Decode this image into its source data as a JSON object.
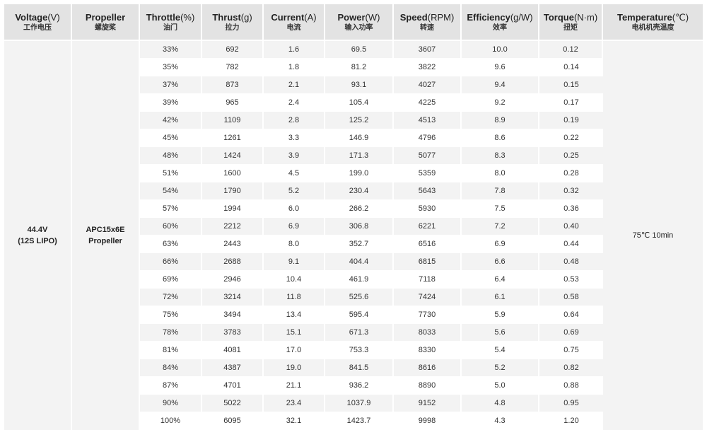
{
  "columns": [
    {
      "en": "Voltage",
      "unit": "(V)",
      "zh": "工作电压"
    },
    {
      "en": "Propeller",
      "unit": "",
      "zh": "螺旋桨"
    },
    {
      "en": "Throttle",
      "unit": "(%)",
      "zh": "油门"
    },
    {
      "en": "Thrust",
      "unit": "(g)",
      "zh": "拉力"
    },
    {
      "en": "Current",
      "unit": "(A)",
      "zh": "电流"
    },
    {
      "en": "Power",
      "unit": "(W)",
      "zh": "输入功率"
    },
    {
      "en": "Speed",
      "unit": "(RPM)",
      "zh": "转速"
    },
    {
      "en": "Efficiency",
      "unit": "(g/W)",
      "zh": "效率"
    },
    {
      "en": "Torque",
      "unit": "(N·m)",
      "zh": "扭矩"
    },
    {
      "en": "Temperature",
      "unit": "(℃)",
      "zh": "电机机壳温度"
    }
  ],
  "voltage": {
    "line1": "44.4V",
    "line2": "(12S LIPO)"
  },
  "propeller": {
    "line1": "APC15x6E",
    "line2": "Propeller"
  },
  "temperature": "75℃  10min",
  "rows": [
    [
      "33%",
      "692",
      "1.6",
      "69.5",
      "3607",
      "10.0",
      "0.12"
    ],
    [
      "35%",
      "782",
      "1.8",
      "81.2",
      "3822",
      "9.6",
      "0.14"
    ],
    [
      "37%",
      "873",
      "2.1",
      "93.1",
      "4027",
      "9.4",
      "0.15"
    ],
    [
      "39%",
      "965",
      "2.4",
      "105.4",
      "4225",
      "9.2",
      "0.17"
    ],
    [
      "42%",
      "1109",
      "2.8",
      "125.2",
      "4513",
      "8.9",
      "0.19"
    ],
    [
      "45%",
      "1261",
      "3.3",
      "146.9",
      "4796",
      "8.6",
      "0.22"
    ],
    [
      "48%",
      "1424",
      "3.9",
      "171.3",
      "5077",
      "8.3",
      "0.25"
    ],
    [
      "51%",
      "1600",
      "4.5",
      "199.0",
      "5359",
      "8.0",
      "0.28"
    ],
    [
      "54%",
      "1790",
      "5.2",
      "230.4",
      "5643",
      "7.8",
      "0.32"
    ],
    [
      "57%",
      "1994",
      "6.0",
      "266.2",
      "5930",
      "7.5",
      "0.36"
    ],
    [
      "60%",
      "2212",
      "6.9",
      "306.8",
      "6221",
      "7.2",
      "0.40"
    ],
    [
      "63%",
      "2443",
      "8.0",
      "352.7",
      "6516",
      "6.9",
      "0.44"
    ],
    [
      "66%",
      "2688",
      "9.1",
      "404.4",
      "6815",
      "6.6",
      "0.48"
    ],
    [
      "69%",
      "2946",
      "10.4",
      "461.9",
      "7118",
      "6.4",
      "0.53"
    ],
    [
      "72%",
      "3214",
      "11.8",
      "525.6",
      "7424",
      "6.1",
      "0.58"
    ],
    [
      "75%",
      "3494",
      "13.4",
      "595.4",
      "7730",
      "5.9",
      "0.64"
    ],
    [
      "78%",
      "3783",
      "15.1",
      "671.3",
      "8033",
      "5.6",
      "0.69"
    ],
    [
      "81%",
      "4081",
      "17.0",
      "753.3",
      "8330",
      "5.4",
      "0.75"
    ],
    [
      "84%",
      "4387",
      "19.0",
      "841.5",
      "8616",
      "5.2",
      "0.82"
    ],
    [
      "87%",
      "4701",
      "21.1",
      "936.2",
      "8890",
      "5.0",
      "0.88"
    ],
    [
      "90%",
      "5022",
      "23.4",
      "1037.9",
      "9152",
      "4.8",
      "0.95"
    ],
    [
      "100%",
      "6095",
      "32.1",
      "1423.7",
      "9998",
      "4.3",
      "1.20"
    ]
  ]
}
